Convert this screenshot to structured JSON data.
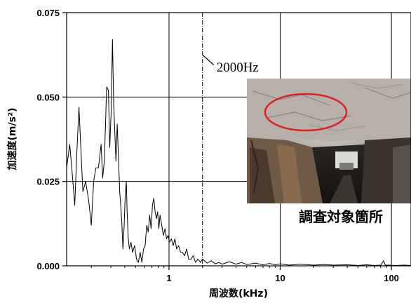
{
  "chart_data": {
    "type": "line",
    "xscale": "log",
    "xlim": [
      0.12,
      150
    ],
    "ylim": [
      0,
      0.075
    ],
    "xlabel": "周波数(kHz)",
    "ylabel": "加速度(m/s²)",
    "x_ticks": [
      {
        "value": 1,
        "label": "1"
      },
      {
        "value": 10,
        "label": "10"
      },
      {
        "value": 100,
        "label": "100"
      }
    ],
    "y_ticks": [
      {
        "value": 0,
        "label": "0.000"
      },
      {
        "value": 0.025,
        "label": "0.025"
      },
      {
        "value": 0.05,
        "label": "0.050"
      },
      {
        "value": 0.075,
        "label": "0.075"
      }
    ],
    "grid": true,
    "annotation": {
      "text": "2000Hz",
      "x": 2
    },
    "photo_caption": "調査対象箇所",
    "photo_content": "tunnel-interior-with-red-ellipse",
    "series": [
      {
        "color": "#000000",
        "points": [
          [
            0.12,
            0.029
          ],
          [
            0.128,
            0.036
          ],
          [
            0.135,
            0.027
          ],
          [
            0.142,
            0.018
          ],
          [
            0.148,
            0.033
          ],
          [
            0.155,
            0.047
          ],
          [
            0.162,
            0.033
          ],
          [
            0.168,
            0.022
          ],
          [
            0.178,
            0.025
          ],
          [
            0.19,
            0.019
          ],
          [
            0.2,
            0.012
          ],
          [
            0.21,
            0.025
          ],
          [
            0.22,
            0.029
          ],
          [
            0.232,
            0.029
          ],
          [
            0.245,
            0.036
          ],
          [
            0.253,
            0.026
          ],
          [
            0.262,
            0.031
          ],
          [
            0.275,
            0.053
          ],
          [
            0.285,
            0.052
          ],
          [
            0.293,
            0.035
          ],
          [
            0.302,
            0.046
          ],
          [
            0.31,
            0.067
          ],
          [
            0.318,
            0.048
          ],
          [
            0.325,
            0.04
          ],
          [
            0.333,
            0.031
          ],
          [
            0.342,
            0.042
          ],
          [
            0.352,
            0.031
          ],
          [
            0.36,
            0.022
          ],
          [
            0.368,
            0.018
          ],
          [
            0.376,
            0.013
          ],
          [
            0.385,
            0.005
          ],
          [
            0.395,
            0.012
          ],
          [
            0.404,
            0.021
          ],
          [
            0.413,
            0.025
          ],
          [
            0.42,
            0.016
          ],
          [
            0.43,
            0.008
          ],
          [
            0.44,
            0.005
          ],
          [
            0.455,
            0.007
          ],
          [
            0.47,
            0.004
          ],
          [
            0.49,
            0.006
          ],
          [
            0.51,
            0.002
          ],
          [
            0.53,
            0.001
          ],
          [
            0.55,
            0.004
          ],
          [
            0.57,
            0.001
          ],
          [
            0.59,
            0.005
          ],
          [
            0.61,
            0.006
          ],
          [
            0.63,
            0.012
          ],
          [
            0.65,
            0.01
          ],
          [
            0.67,
            0.015
          ],
          [
            0.69,
            0.011
          ],
          [
            0.71,
            0.018
          ],
          [
            0.73,
            0.02
          ],
          [
            0.75,
            0.016
          ],
          [
            0.77,
            0.014
          ],
          [
            0.79,
            0.016
          ],
          [
            0.81,
            0.011
          ],
          [
            0.83,
            0.015
          ],
          [
            0.86,
            0.012
          ],
          [
            0.89,
            0.009
          ],
          [
            0.92,
            0.011
          ],
          [
            0.95,
            0.008
          ],
          [
            0.98,
            0.009
          ],
          [
            1.01,
            0.007
          ],
          [
            1.05,
            0.008
          ],
          [
            1.09,
            0.006
          ],
          [
            1.13,
            0.008
          ],
          [
            1.17,
            0.005
          ],
          [
            1.22,
            0.006
          ],
          [
            1.27,
            0.004
          ],
          [
            1.32,
            0.004
          ],
          [
            1.38,
            0.003
          ],
          [
            1.44,
            0.005
          ],
          [
            1.5,
            0.002
          ],
          [
            1.58,
            0.002
          ],
          [
            1.65,
            0.003
          ],
          [
            1.73,
            0.001
          ],
          [
            1.82,
            0.002
          ],
          [
            1.92,
            0.001
          ],
          [
            2.0,
            0.002
          ],
          [
            2.2,
            0.0008
          ],
          [
            2.4,
            0.0015
          ],
          [
            2.6,
            0.0006
          ],
          [
            2.8,
            0.001
          ],
          [
            3.0,
            0.0005
          ],
          [
            3.5,
            0.0012
          ],
          [
            4.0,
            0.0005
          ],
          [
            4.5,
            0.001
          ],
          [
            5.0,
            0.0004
          ],
          [
            6.0,
            0.0008
          ],
          [
            7.0,
            0.0003
          ],
          [
            8.0,
            0.0007
          ],
          [
            9.0,
            0.0003
          ],
          [
            10.0,
            0.0006
          ],
          [
            12.0,
            0.0002
          ],
          [
            15.0,
            0.0005
          ],
          [
            20.0,
            0.0002
          ],
          [
            25.0,
            0.0004
          ],
          [
            30.0,
            0.0002
          ],
          [
            40.0,
            0.0003
          ],
          [
            50.0,
            0.0001
          ],
          [
            60.0,
            0.0003
          ],
          [
            70.0,
            0.0001
          ],
          [
            80.0,
            0.0002
          ],
          [
            85.0,
            0.0015
          ],
          [
            88.0,
            0.0002
          ],
          [
            95.0,
            0.0002
          ],
          [
            110.0,
            0.0001
          ],
          [
            130.0,
            0.0002
          ],
          [
            150.0,
            0.0001
          ]
        ]
      }
    ]
  }
}
